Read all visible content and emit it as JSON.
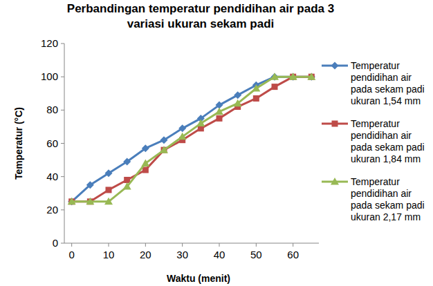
{
  "chart_data": {
    "type": "line",
    "title": "Perbandingan temperatur pendidihan air pada 3 variasi ukuran sekam padi",
    "x_label": "Waktu (menit)",
    "y_label": "Temperatur (°C)",
    "x": [
      0,
      5,
      10,
      15,
      20,
      25,
      30,
      35,
      40,
      45,
      50,
      55,
      60,
      65
    ],
    "xlim": [
      -2,
      67
    ],
    "xticks": [
      0,
      10,
      20,
      30,
      40,
      50,
      60
    ],
    "ylim": [
      0,
      120
    ],
    "yticks": [
      0,
      20,
      40,
      60,
      80,
      100,
      120
    ],
    "grid": false,
    "legend": "right",
    "series": [
      {
        "name": "Temperatur pendidihan air pada sekam padi ukuran 1,54 mm",
        "color": "#4a7ebb",
        "marker": "diamond",
        "values": [
          25,
          35,
          42,
          49,
          57,
          62,
          69,
          75,
          83,
          89,
          95,
          100,
          100,
          100
        ]
      },
      {
        "name": "Temperatur pendidihan air pada sekam padi ukuran 1,84 mm",
        "color": "#be4b48",
        "marker": "square",
        "values": [
          25,
          25,
          32,
          38,
          44,
          56,
          62,
          69,
          75,
          82,
          87,
          94,
          100,
          100
        ]
      },
      {
        "name": "Temperatur pendidihan air pada sekam padi ukuran 2,17 mm",
        "color": "#98b954",
        "marker": "triangle",
        "values": [
          25,
          25,
          25,
          34,
          48,
          56,
          64,
          72,
          79,
          84,
          93,
          100,
          100,
          100
        ]
      }
    ]
  }
}
